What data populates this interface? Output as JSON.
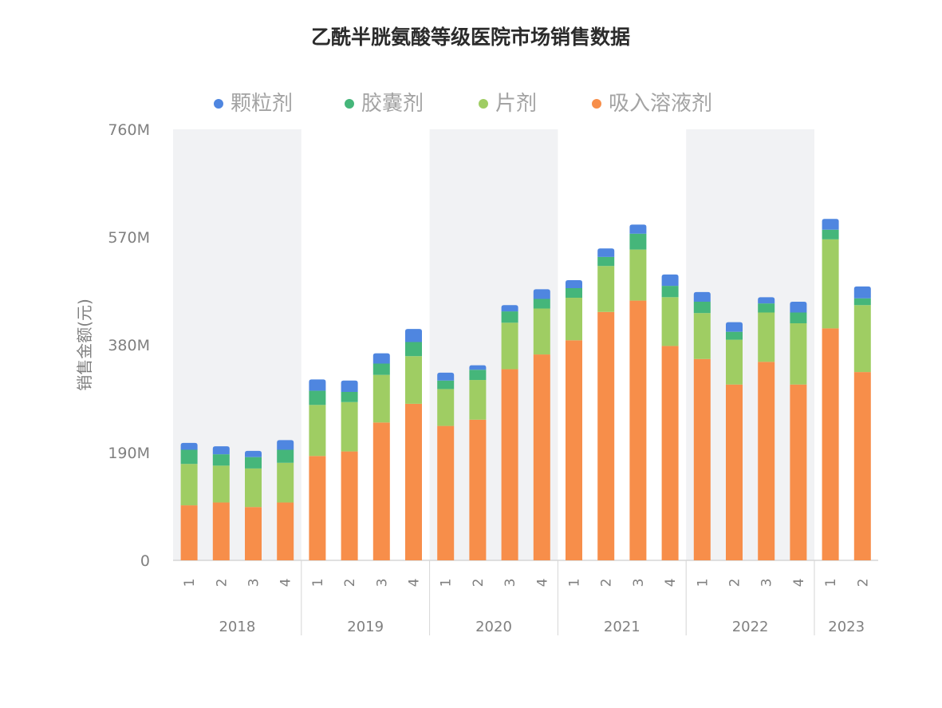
{
  "chart_data": {
    "type": "bar",
    "stacked": true,
    "title": "乙酰半胱氨酸等级医院市场销售数据",
    "ylabel": "销售金额(元)",
    "xlabel": "",
    "ylim": [
      0,
      760
    ],
    "yticks": [
      0,
      190,
      380,
      570,
      760
    ],
    "ytick_labels": [
      "0",
      "190M",
      "380M",
      "570M",
      "760M"
    ],
    "legend_position": "top",
    "groups": [
      {
        "year": "2018",
        "quarters": [
          "1",
          "2",
          "3",
          "4"
        ],
        "shaded": true
      },
      {
        "year": "2019",
        "quarters": [
          "1",
          "2",
          "3",
          "4"
        ],
        "shaded": false
      },
      {
        "year": "2020",
        "quarters": [
          "1",
          "2",
          "3",
          "4"
        ],
        "shaded": true
      },
      {
        "year": "2021",
        "quarters": [
          "1",
          "2",
          "3",
          "4"
        ],
        "shaded": false
      },
      {
        "year": "2022",
        "quarters": [
          "1",
          "2",
          "3",
          "4"
        ],
        "shaded": true
      },
      {
        "year": "2023",
        "quarters": [
          "1",
          "2"
        ],
        "shaded": false
      }
    ],
    "series": [
      {
        "name": "吸入溶液剂",
        "color": "#f78e4a",
        "values": [
          97,
          102,
          94,
          102,
          184,
          192,
          243,
          276,
          237,
          248,
          337,
          363,
          388,
          438,
          458,
          378,
          355,
          310,
          350,
          310,
          409,
          332
        ]
      },
      {
        "name": "片剂",
        "color": "#9fcd63",
        "values": [
          73,
          65,
          68,
          70,
          90,
          87,
          84,
          84,
          65,
          70,
          82,
          81,
          75,
          81,
          90,
          86,
          81,
          79,
          87,
          108,
          157,
          118
        ]
      },
      {
        "name": "胶囊剂",
        "color": "#45b67a",
        "values": [
          25,
          20,
          20,
          23,
          25,
          18,
          20,
          25,
          15,
          18,
          20,
          17,
          17,
          16,
          28,
          20,
          20,
          14,
          16,
          19,
          17,
          12
        ]
      },
      {
        "name": "颗粒剂",
        "color": "#4f86e0",
        "values": [
          12,
          14,
          11,
          17,
          20,
          20,
          18,
          23,
          14,
          8,
          11,
          17,
          14,
          15,
          16,
          20,
          17,
          17,
          11,
          19,
          19,
          21
        ]
      }
    ]
  },
  "colors": {
    "band": "#f1f2f4",
    "axis": "#d6d6d6",
    "tick_text": "#808080",
    "title_text": "#2b2b2b",
    "legend_text": "#a3a3a3"
  }
}
